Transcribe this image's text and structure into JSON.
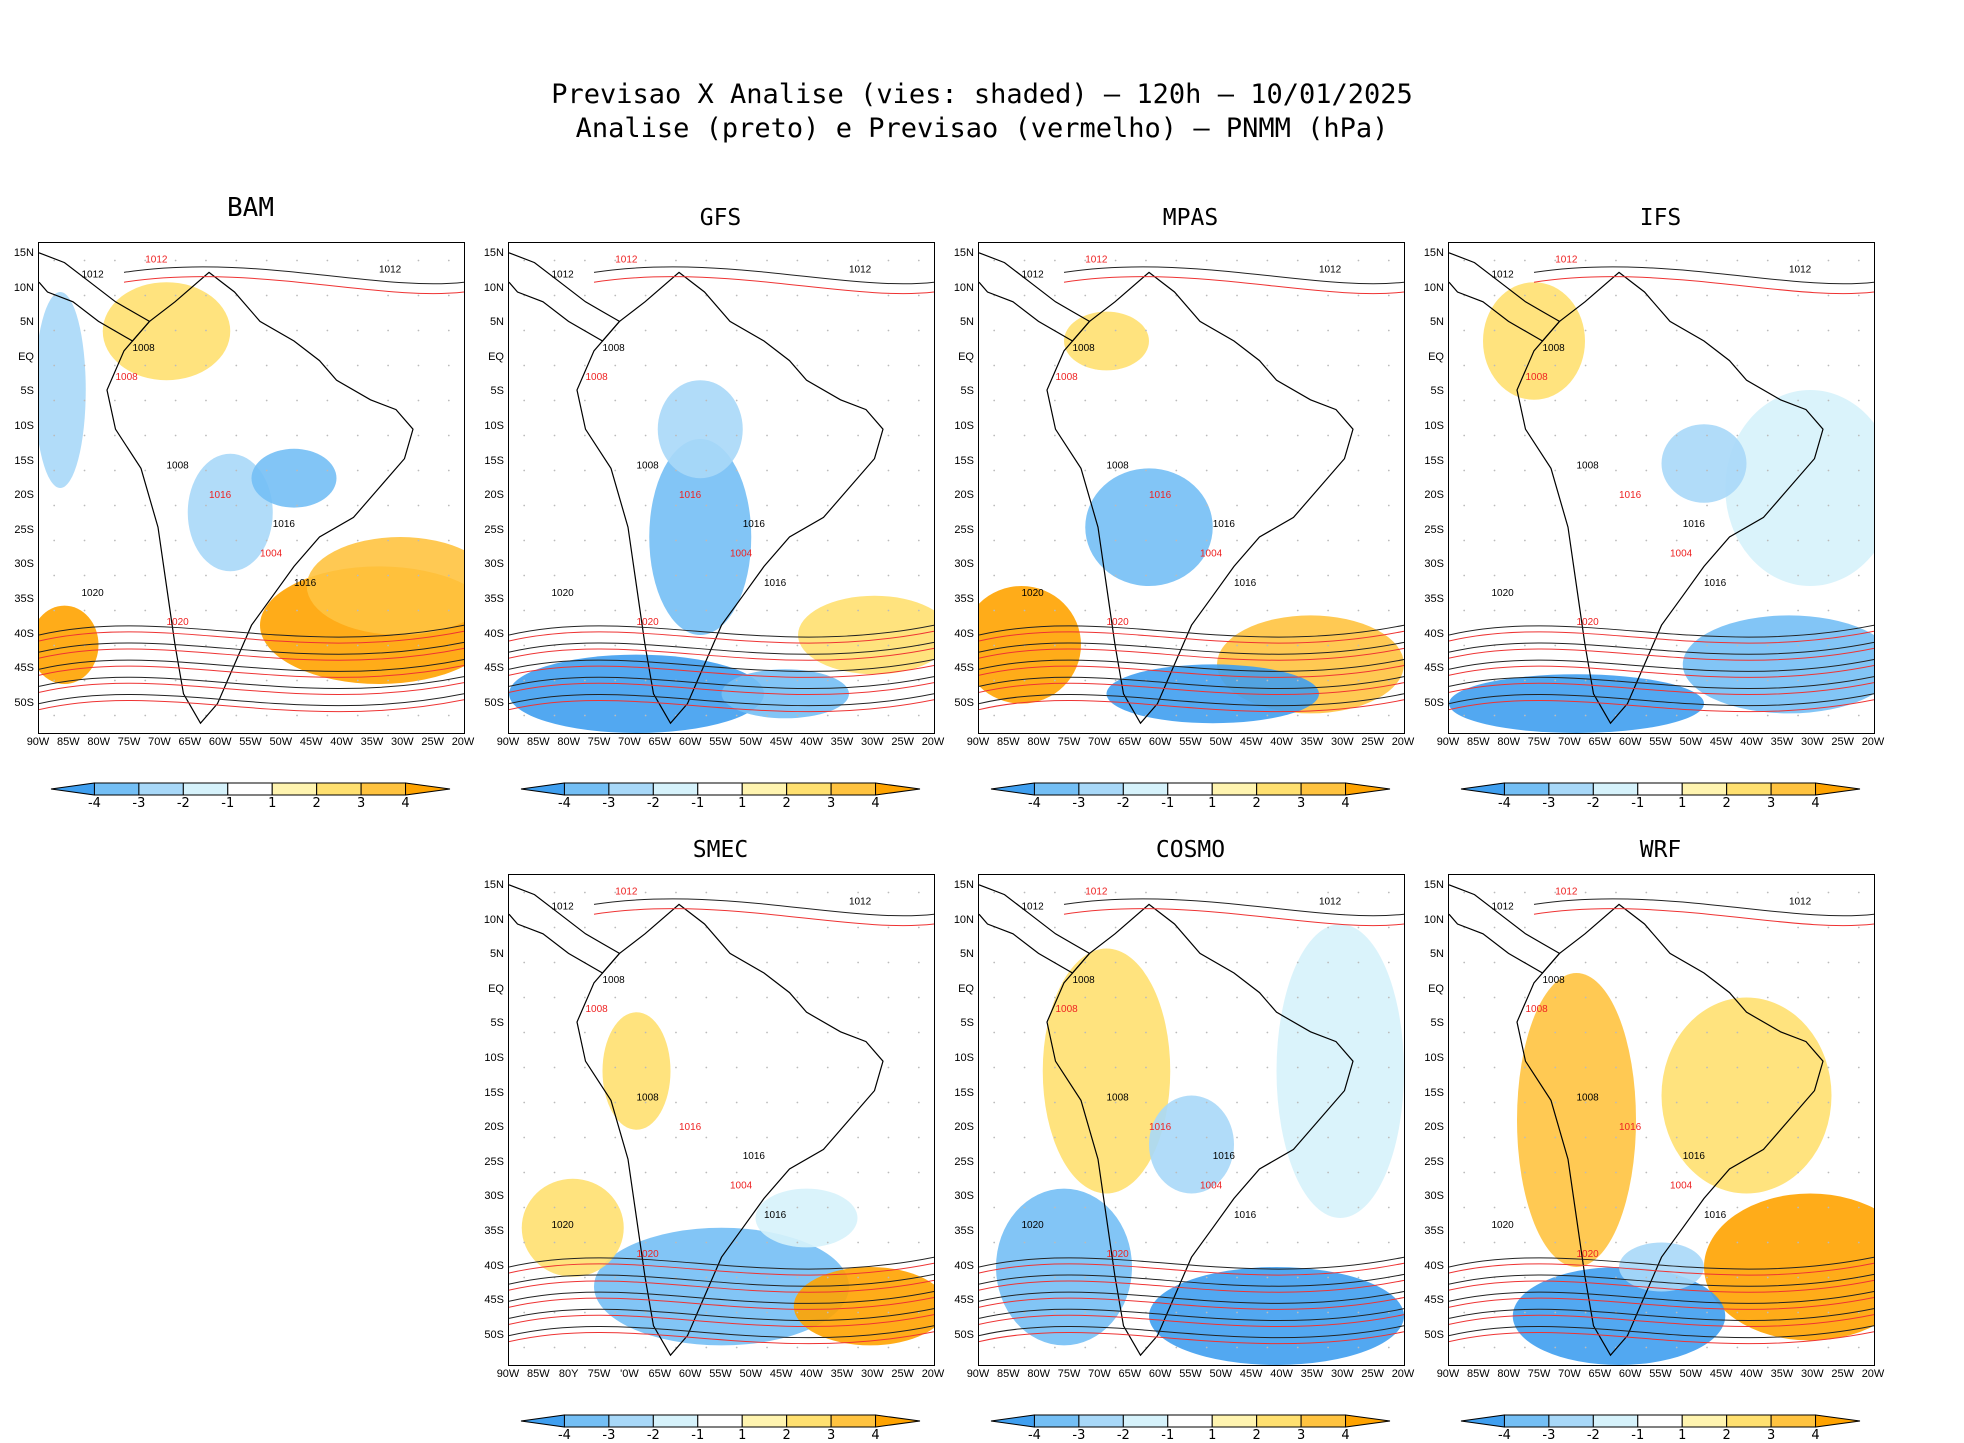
{
  "title": {
    "line1": "Previsao X Analise (vies: shaded) – 120h – 10/01/2025",
    "line2": "Analise (preto) e Previsao (vermelho) – PNMM (hPa)"
  },
  "panels": [
    {
      "name": "BAM"
    },
    {
      "name": "GFS"
    },
    {
      "name": "MPAS"
    },
    {
      "name": "IFS"
    },
    {
      "name": "SMEC"
    },
    {
      "name": "COSMO"
    },
    {
      "name": "WRF"
    }
  ],
  "axes": {
    "lat_labels": [
      "15N",
      "10N",
      "5N",
      "EQ",
      "5S",
      "10S",
      "15S",
      "20S",
      "25S",
      "30S",
      "35S",
      "40S",
      "45S",
      "50S"
    ],
    "lon_labels": [
      "90W",
      "85W",
      "80W",
      "75W",
      "70W",
      "65W",
      "60W",
      "55W",
      "50W",
      "45W",
      "40W",
      "35W",
      "30W",
      "25W",
      "20W"
    ],
    "lon_labels_smec": [
      "90W",
      "85W",
      "80Y",
      "75W",
      "'0W",
      "65W",
      "60W",
      "55W",
      "50W",
      "45W",
      "40W",
      "35W",
      "30W",
      "25W",
      "20W"
    ]
  },
  "colorbar": {
    "labels": [
      "-4",
      "-3",
      "-2",
      "-1",
      "1",
      "2",
      "3",
      "4"
    ],
    "colors": [
      "#3f9ff0",
      "#74bff5",
      "#a8d8f8",
      "#d6f2fb",
      "#ffffff",
      "#fff4b0",
      "#ffe070",
      "#ffc340",
      "#ffa300"
    ]
  },
  "contour_labels": {
    "analysis": [
      "1012",
      "1008",
      "1016",
      "1020",
      "1012",
      "1008",
      "1016"
    ],
    "forecast": [
      "1012",
      "1008",
      "1016",
      "1020",
      "1004"
    ]
  }
}
